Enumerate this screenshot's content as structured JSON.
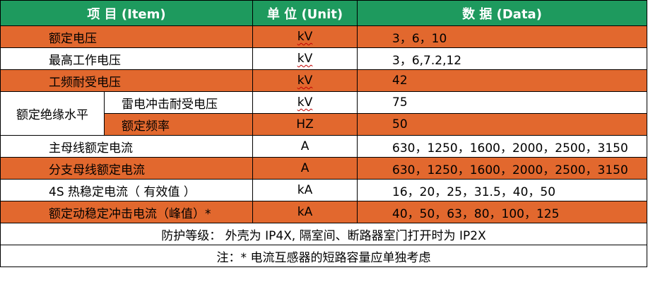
{
  "header": {
    "item": "项 目 (Item)",
    "unit": "单 位 (Unit)",
    "data": "数 据 (Data)"
  },
  "rows": [
    {
      "item": "额定电压",
      "unit": "kV",
      "data": "3，6，10"
    },
    {
      "item": "最高工作电压",
      "unit": "kV",
      "data": "3，6,7.2,12"
    },
    {
      "item": "工频耐受电压",
      "unit": "kV",
      "data": "42"
    },
    {
      "group": "额定绝缘水平",
      "item": "雷电冲击耐受电压",
      "unit": "kV",
      "data": "75"
    },
    {
      "item": "额定频率",
      "unit": "HZ",
      "data": "50"
    },
    {
      "item": "主母线额定电流",
      "unit": "A",
      "data": "630，1250，1600，2000，2500，3150"
    },
    {
      "item": "分支母线额定电流",
      "unit": "A",
      "data": "630，1250，1600，2000，2500，3150"
    },
    {
      "item": "4S 热稳定电流（ 有效值 ）",
      "unit": "kA",
      "data": "16，20，25，31.5，40，50"
    },
    {
      "item": "额定动稳定冲击电流（峰值）*",
      "unit": "kA",
      "data": "40，50，63，80，100，125"
    }
  ],
  "notes": {
    "protection": "防护等级： 外壳为 IP4X, 隔室间、断路器室门打开时为 IP2X",
    "remark": "注：* 电流互感器的短路容量应单独考虑"
  },
  "colors": {
    "header_bg": "#1e9a5e",
    "row_orange": "#e2682e",
    "row_white": "#ffffff"
  }
}
